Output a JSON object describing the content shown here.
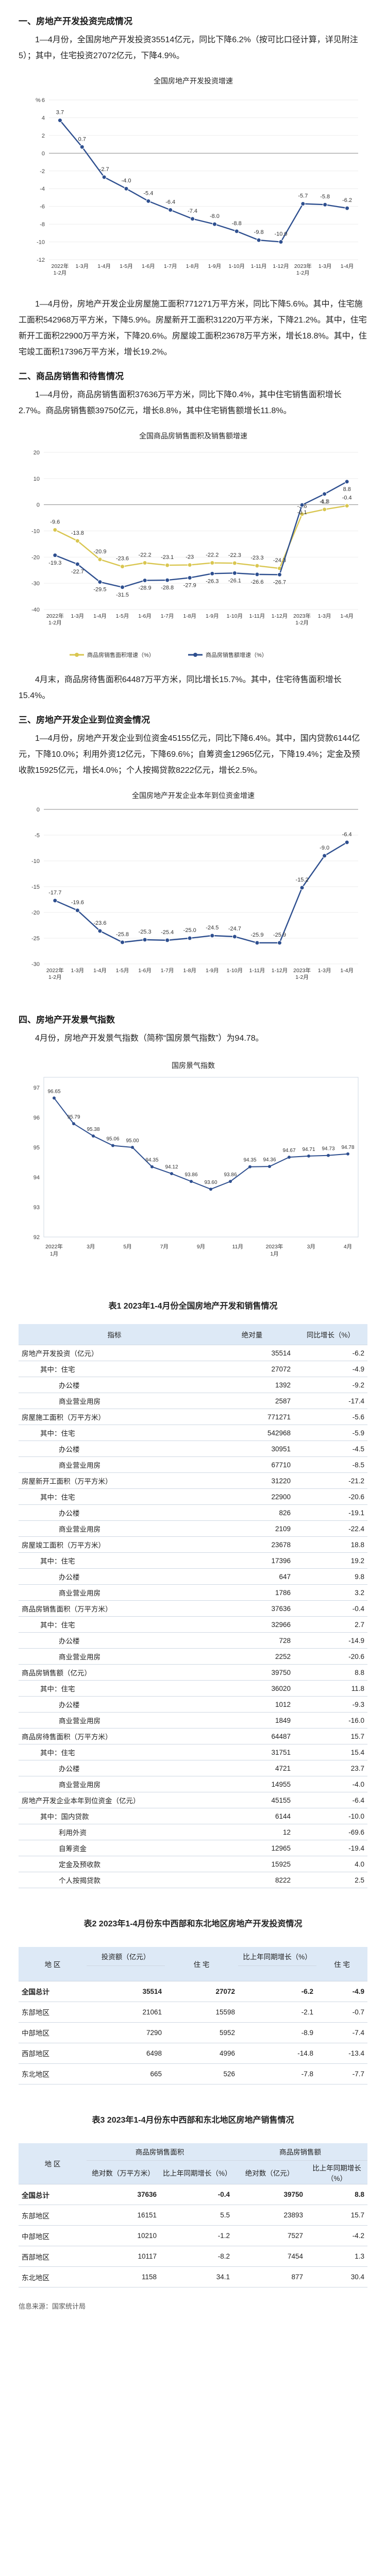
{
  "s1": {
    "title": "一、房地产开发投资完成情况",
    "p1": "1—4月份，全国房地产开发投资35514亿元，同比下降6.2%（按可比口径计算，详见附注5）；其中，住宅投资27072亿元，下降4.9%。"
  },
  "c1": {
    "title": "全国房地产开发投资增速",
    "chart_data": {
      "type": "line",
      "title": "全国房地产开发投资增速",
      "categories": [
        "2022年1-2月",
        "1-3月",
        "1-4月",
        "1-5月",
        "1-6月",
        "1-7月",
        "1-8月",
        "1-9月",
        "1-10月",
        "1-11月",
        "1-12月",
        "2023年1-2月",
        "1-3月",
        "1-4月"
      ],
      "values": [
        3.7,
        0.7,
        -2.7,
        -4.0,
        -5.4,
        -6.4,
        -7.4,
        -8.0,
        -8.8,
        -9.8,
        -10.0,
        -5.7,
        -5.8,
        -6.2
      ],
      "labels": [
        "3.7",
        "0.7",
        "-2.7",
        "-4.0",
        "-5.4",
        "-6.4",
        "-7.4",
        "-8.0",
        "-8.8",
        "-9.8",
        "-10.0",
        "-5.7",
        "-5.8",
        "-6.2"
      ],
      "ylim": [
        -12,
        6
      ],
      "yticks": [
        "6",
        "4",
        "2",
        "0",
        "-2",
        "-4",
        "-6",
        "-8",
        "-10",
        "-12"
      ],
      "ylabel": "%"
    }
  },
  "s1b": {
    "p1": "1—4月份，房地产开发企业房屋施工面积771271万平方米，同比下降5.6%。其中，住宅施工面积542968万平方米，下降5.9%。房屋新开工面积31220万平方米，下降21.2%。其中，住宅新开工面积22900万平方米，下降20.6%。房屋竣工面积23678万平方米，增长18.8%。其中，住宅竣工面积17396万平方米，增长19.2%。"
  },
  "s2": {
    "title": "二、商品房销售和待售情况",
    "p1": "1—4月份，商品房销售面积37636万平方米，同比下降0.4%，其中住宅销售面积增长2.7%。商品房销售额39750亿元，增长8.8%，其中住宅销售额增长11.8%。"
  },
  "c2": {
    "title": "全国商品房销售面积及销售额增速",
    "chart_data": {
      "type": "line",
      "title": "全国商品房销售面积及销售额增速",
      "categories": [
        "2022年1-2月",
        "1-3月",
        "1-4月",
        "1-5月",
        "1-6月",
        "1-7月",
        "1-8月",
        "1-9月",
        "1-10月",
        "1-11月",
        "1-12月",
        "2023年1-2月",
        "1-3月",
        "1-4月"
      ],
      "series": [
        {
          "name": "商品房销售面积增速（%）",
          "values": [
            -9.6,
            -13.8,
            -20.9,
            -23.6,
            -22.2,
            -23.1,
            -23.0,
            -22.2,
            -22.3,
            -23.3,
            -24.3,
            -3.6,
            -1.8,
            -0.4
          ],
          "color": "#d9c650"
        },
        {
          "name": "商品房销售额增速（%）",
          "values": [
            -19.3,
            -22.7,
            -29.5,
            -31.5,
            -28.9,
            -28.8,
            -27.9,
            -26.3,
            -26.1,
            -26.6,
            -26.7,
            -0.1,
            4.1,
            8.8
          ],
          "color": "#2e4f8f"
        }
      ],
      "ylim": [
        -40,
        20
      ],
      "yticks": [
        "20",
        "10",
        "0",
        "-10",
        "-20",
        "-30",
        "-40"
      ]
    }
  },
  "s2b": {
    "p1": "4月末，商品房待售面积64487万平方米，同比增长15.7%。其中，住宅待售面积增长15.4%。"
  },
  "s3": {
    "title": "三、房地产开发企业到位资金情况",
    "p1": "1—4月份，房地产开发企业到位资金45155亿元，同比下降6.4%。其中，国内贷款6144亿元，下降10.0%；利用外资12亿元，下降69.6%；自筹资金12965亿元，下降19.4%；定金及预收款15925亿元，增长4.0%；个人按揭贷款8222亿元，增长2.5%。"
  },
  "c3": {
    "title": "全国房地产开发企业本年到位资金增速",
    "chart_data": {
      "type": "line",
      "title": "全国房地产开发企业本年到位资金增速",
      "categories": [
        "2022年1-2月",
        "1-3月",
        "1-4月",
        "1-5月",
        "1-6月",
        "1-7月",
        "1-8月",
        "1-9月",
        "1-10月",
        "1-11月",
        "1-12月",
        "2023年1-2月",
        "1-3月",
        "1-4月"
      ],
      "values": [
        -17.7,
        -19.6,
        -23.6,
        -25.8,
        -25.3,
        -25.4,
        -25.0,
        -24.5,
        -24.7,
        -25.9,
        -25.9,
        -15.2,
        -9.0,
        -6.4
      ],
      "labels": [
        "-17.7",
        "-19.6",
        "-23.6",
        "-25.8",
        "-25.3",
        "-25.4",
        "-25.0",
        "-24.5",
        "-24.7",
        "-25.9",
        "-25.9",
        "-15.2",
        "-9.0",
        "-6.4"
      ],
      "ylim": [
        -30,
        0
      ],
      "yticks": [
        "0",
        "-5",
        "-10",
        "-15",
        "-20",
        "-25",
        "-30"
      ]
    }
  },
  "s4": {
    "title": "四、房地产开发景气指数",
    "p1": "4月份，房地产开发景气指数（简称“国房景气指数”）为94.78。"
  },
  "c4": {
    "title": "国房景气指数",
    "chart_data": {
      "type": "line",
      "title": "国房景气指数",
      "categories": [
        "2022年1月",
        "3月",
        "5月",
        "7月",
        "9月",
        "11月",
        "2023年1月",
        "3月",
        "4月"
      ],
      "labels_by_point": [
        "96.65",
        "95.79",
        "95.38",
        "95.06",
        "95.00",
        "94.35",
        "94.12",
        "93.86",
        "93.60",
        "93.86",
        "94.35",
        "94.36",
        "94.67",
        "94.71",
        "94.73",
        "94.78"
      ],
      "points": [
        96.65,
        95.79,
        95.38,
        95.06,
        95.0,
        94.35,
        94.12,
        93.86,
        93.6,
        93.86,
        94.35,
        94.36,
        94.67,
        94.71,
        94.73,
        94.78
      ],
      "ylim": [
        92,
        97
      ],
      "yticks": [
        "97",
        "96",
        "95",
        "94",
        "93",
        "92"
      ]
    }
  },
  "t1": {
    "title": "表1    2023年1-4月份全国房地产开发和销售情况",
    "headers": [
      "指标",
      "绝对量",
      "同比增长（%）"
    ],
    "rows": [
      [
        "房地产开发投资（亿元）",
        "35514",
        "-6.2"
      ],
      [
        "其中：住宅",
        "27072",
        "-4.9"
      ],
      [
        "办公楼",
        "1392",
        "-9.2"
      ],
      [
        "商业营业用房",
        "2587",
        "-17.4"
      ],
      [
        "房屋施工面积（万平方米）",
        "771271",
        "-5.6"
      ],
      [
        "其中：住宅",
        "542968",
        "-5.9"
      ],
      [
        "办公楼",
        "30951",
        "-4.5"
      ],
      [
        "商业营业用房",
        "67710",
        "-8.5"
      ],
      [
        "房屋新开工面积（万平方米）",
        "31220",
        "-21.2"
      ],
      [
        "其中：住宅",
        "22900",
        "-20.6"
      ],
      [
        "办公楼",
        "826",
        "-19.1"
      ],
      [
        "商业营业用房",
        "2109",
        "-22.4"
      ],
      [
        "房屋竣工面积（万平方米）",
        "23678",
        "18.8"
      ],
      [
        "其中：住宅",
        "17396",
        "19.2"
      ],
      [
        "办公楼",
        "647",
        "9.8"
      ],
      [
        "商业营业用房",
        "1786",
        "3.2"
      ],
      [
        "商品房销售面积（万平方米）",
        "37636",
        "-0.4"
      ],
      [
        "其中：住宅",
        "32966",
        "2.7"
      ],
      [
        "办公楼",
        "728",
        "-14.9"
      ],
      [
        "商业营业用房",
        "2252",
        "-20.6"
      ],
      [
        "商品房销售额（亿元）",
        "39750",
        "8.8"
      ],
      [
        "其中：住宅",
        "36020",
        "11.8"
      ],
      [
        "办公楼",
        "1012",
        "-9.3"
      ],
      [
        "商业营业用房",
        "1849",
        "-16.0"
      ],
      [
        "商品房待售面积（万平方米）",
        "64487",
        "15.7"
      ],
      [
        "其中：住宅",
        "31751",
        "15.4"
      ],
      [
        "办公楼",
        "4721",
        "23.7"
      ],
      [
        "商业营业用房",
        "14955",
        "-4.0"
      ],
      [
        "房地产开发企业本年到位资金（亿元）",
        "45155",
        "-6.4"
      ],
      [
        "其中：国内贷款",
        "6144",
        "-10.0"
      ],
      [
        "利用外资",
        "12",
        "-69.6"
      ],
      [
        "自筹资金",
        "12965",
        "-19.4"
      ],
      [
        "定金及预收款",
        "15925",
        "4.0"
      ],
      [
        "个人按揭贷款",
        "8222",
        "2.5"
      ]
    ],
    "indent": [
      0,
      1,
      2,
      2,
      0,
      1,
      2,
      2,
      0,
      1,
      2,
      2,
      0,
      1,
      2,
      2,
      0,
      1,
      2,
      2,
      0,
      1,
      2,
      2,
      0,
      1,
      2,
      2,
      0,
      1,
      2,
      2,
      2,
      2
    ]
  },
  "t2": {
    "title": "表2    2023年1-4月份东中西部和东北地区房地产开发投资情况",
    "h_area": "地    区",
    "h_inv": "投资额（亿元）",
    "h_res": "住    宅",
    "h_growth": "比上年同期增长（%）",
    "h_res2": "住    宅",
    "rows": [
      [
        "全国总计",
        "35514",
        "27072",
        "-6.2",
        "-4.9"
      ],
      [
        "东部地区",
        "21061",
        "15598",
        "-2.1",
        "-0.7"
      ],
      [
        "中部地区",
        "7290",
        "5952",
        "-8.9",
        "-7.4"
      ],
      [
        "西部地区",
        "6498",
        "4996",
        "-14.8",
        "-13.4"
      ],
      [
        "东北地区",
        "665",
        "526",
        "-7.8",
        "-7.7"
      ]
    ]
  },
  "t3": {
    "title": "表3    2023年1-4月份东中西部和东北地区房地产销售情况",
    "h_area": "地    区",
    "h_area_g": "商品房销售面积",
    "h_amt_g": "商品房销售额",
    "h_abs1": "绝对数（万平方米）",
    "h_gr1": "比上年同期增长（%）",
    "h_abs2": "绝对数（亿元）",
    "h_gr2": "比上年同期增长（%）",
    "rows": [
      [
        "全国总计",
        "37636",
        "-0.4",
        "39750",
        "8.8"
      ],
      [
        "东部地区",
        "16151",
        "5.5",
        "23893",
        "15.7"
      ],
      [
        "中部地区",
        "10210",
        "-1.2",
        "7527",
        "-4.2"
      ],
      [
        "西部地区",
        "10117",
        "-8.2",
        "7454",
        "1.3"
      ],
      [
        "东北地区",
        "1158",
        "34.1",
        "877",
        "30.4"
      ]
    ]
  },
  "footer": {
    "source": "信息来源：国家统计局"
  }
}
